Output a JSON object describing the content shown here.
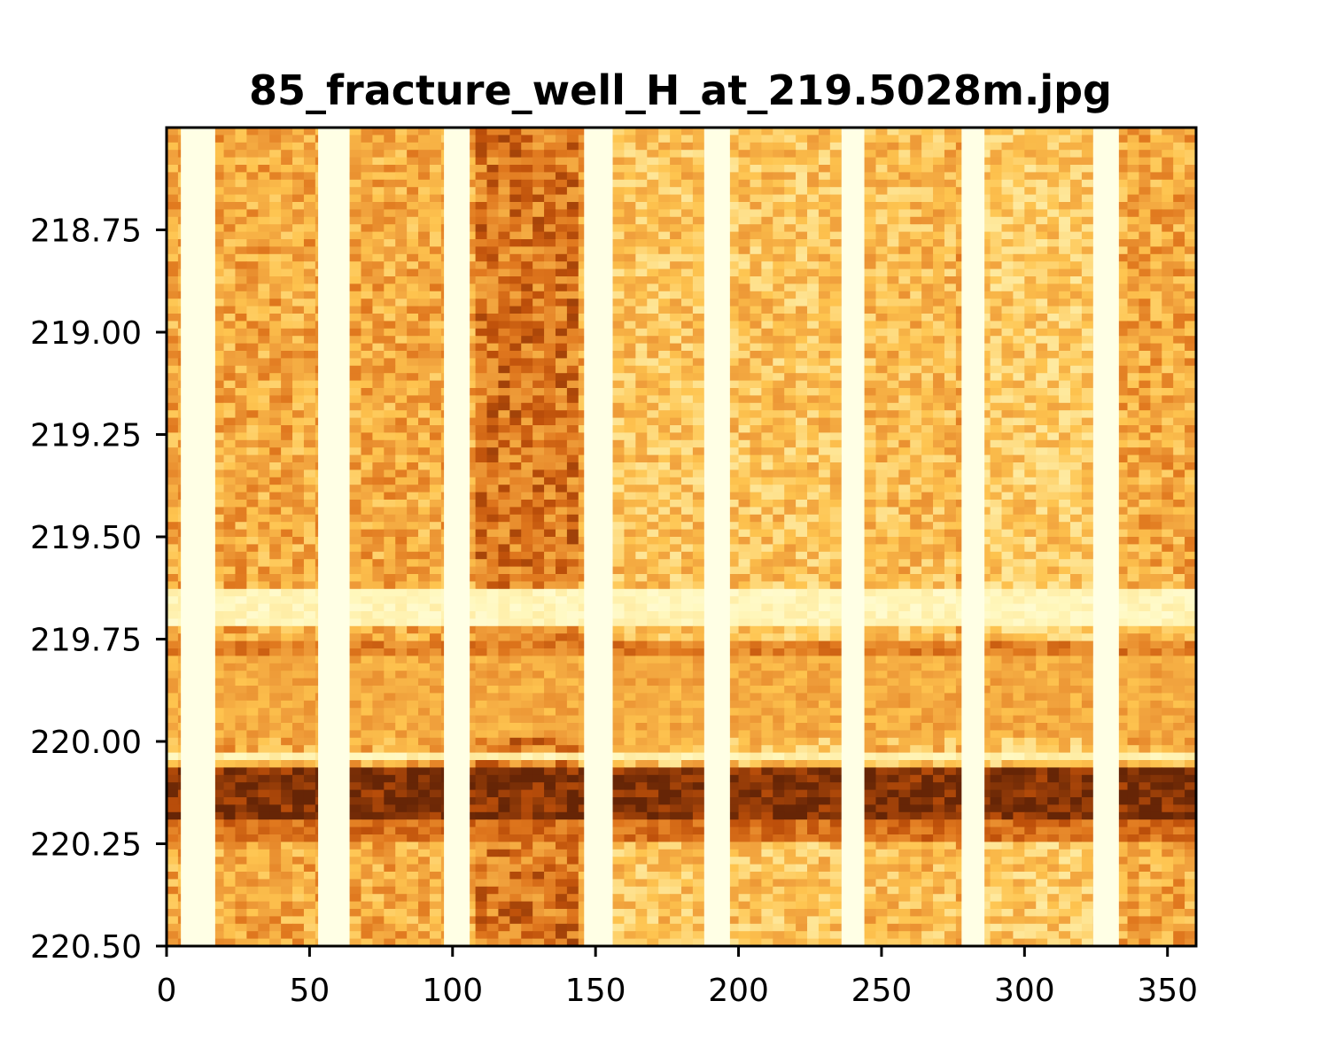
{
  "chart_data": {
    "type": "heatmap",
    "title": "85_fracture_well_H_at_219.5028m.jpg",
    "xlabel": "",
    "ylabel": "",
    "xlim": [
      0,
      360
    ],
    "ylim": [
      218.5,
      220.5
    ],
    "y_inverted": true,
    "grid": false,
    "colormap": "YlOrBr",
    "colors": {
      "low": "#ffffe5",
      "mid": "#e8922f",
      "high": "#6b2a06",
      "frame": "#000000"
    },
    "x_ticks": [
      {
        "value": 0,
        "label": "0"
      },
      {
        "value": 50,
        "label": "50"
      },
      {
        "value": 100,
        "label": "100"
      },
      {
        "value": 150,
        "label": "150"
      },
      {
        "value": 200,
        "label": "200"
      },
      {
        "value": 250,
        "label": "250"
      },
      {
        "value": 300,
        "label": "300"
      },
      {
        "value": 350,
        "label": "350"
      }
    ],
    "y_ticks": [
      {
        "value": 218.75,
        "label": "218.75"
      },
      {
        "value": 219.0,
        "label": "219.00"
      },
      {
        "value": 219.25,
        "label": "219.25"
      },
      {
        "value": 219.5,
        "label": "219.50"
      },
      {
        "value": 219.75,
        "label": "219.75"
      },
      {
        "value": 220.0,
        "label": "220.00"
      },
      {
        "value": 220.25,
        "label": "220.25"
      },
      {
        "value": 220.5,
        "label": "220.50"
      }
    ],
    "pad_gaps_deg": [
      [
        5,
        17
      ],
      [
        53,
        64
      ],
      [
        97,
        106
      ],
      [
        146,
        156
      ],
      [
        188,
        197
      ],
      [
        236,
        244
      ],
      [
        278,
        286
      ],
      [
        324,
        333
      ]
    ],
    "dark_bands_m": [
      {
        "from": 220.06,
        "to": 220.19,
        "intensity": 0.95
      },
      {
        "from": 220.19,
        "to": 220.25,
        "intensity": 0.75
      },
      {
        "from": 219.75,
        "to": 219.8,
        "intensity": 0.7
      },
      {
        "from": 219.8,
        "to": 220.0,
        "intensity": 0.55
      }
    ],
    "light_bands_m": [
      {
        "from": 219.62,
        "to": 219.72,
        "intensity": 0.08
      },
      {
        "from": 220.02,
        "to": 220.05,
        "intensity": 0.12
      }
    ]
  }
}
